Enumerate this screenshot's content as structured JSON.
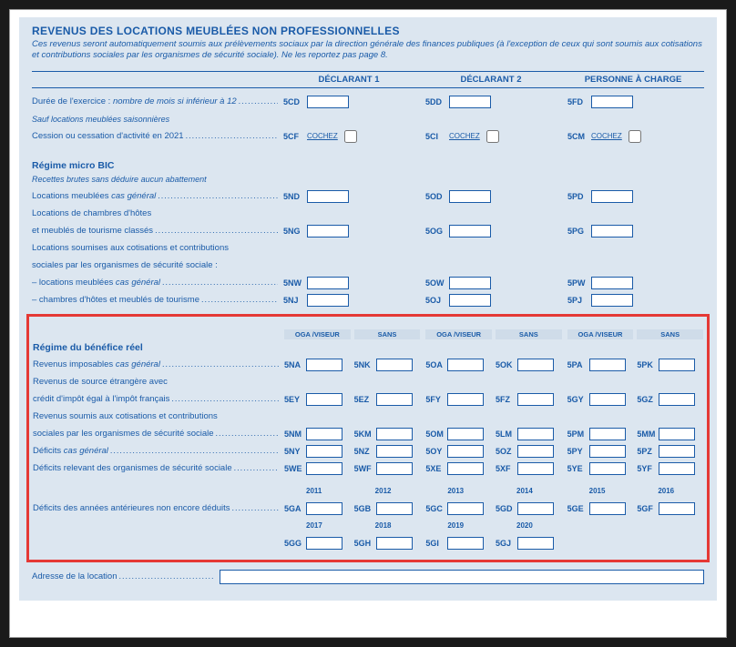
{
  "title": "REVENUS DES LOCATIONS MEUBLÉES NON PROFESSIONNELLES",
  "subtitle": "Ces revenus seront automatiquement soumis aux prélèvements sociaux par la direction générale des finances publiques (à l'exception de ceux qui sont soumis aux cotisations et contributions sociales par les organismes de sécurité sociale). Ne les reportez pas page 8.",
  "colHeaders": {
    "d1": "DÉCLARANT 1",
    "d2": "DÉCLARANT 2",
    "d3": "PERSONNE À CHARGE"
  },
  "rows": {
    "duree": {
      "label": "Durée de l'exercice :",
      "tail": "nombre de mois si inférieur à 12",
      "c": [
        "5CD",
        "5DD",
        "5FD"
      ]
    },
    "dureeSub": "Sauf locations meublées saisonnières",
    "cession": {
      "label": "Cession ou cessation d'activité en 2021",
      "c": [
        "5CF",
        "5CI",
        "5CM"
      ],
      "cochez": "COCHEZ"
    }
  },
  "micro": {
    "head": "Régime micro BIC",
    "sub": "Recettes brutes sans déduire aucun abattement",
    "r1": {
      "label": "Locations meublées",
      "tail": "cas général",
      "c": [
        "5ND",
        "5OD",
        "5PD"
      ]
    },
    "r2a": "Locations de chambres d'hôtes",
    "r2": {
      "label": "et meublés de tourisme classés",
      "c": [
        "5NG",
        "5OG",
        "5PG"
      ]
    },
    "r3a": "Locations soumises aux cotisations et contributions",
    "r3b": "sociales par les organismes de sécurité sociale :",
    "r4": {
      "label": "– locations meublées",
      "tail": "cas général",
      "c": [
        "5NW",
        "5OW",
        "5PW"
      ]
    },
    "r5": {
      "label": "– chambres d'hôtes et meublés de tourisme",
      "c": [
        "5NJ",
        "5OJ",
        "5PJ"
      ]
    }
  },
  "reel": {
    "head": "Régime du bénéfice réel",
    "sh": {
      "a": "OGA /VISEUR",
      "b": "SANS"
    },
    "r1": {
      "label": "Revenus imposables",
      "tail": "cas général",
      "c": [
        "5NA",
        "5NK",
        "5OA",
        "5OK",
        "5PA",
        "5PK"
      ]
    },
    "r2a": "Revenus de source étrangère avec",
    "r2": {
      "label": "crédit d'impôt égal à l'impôt français",
      "c": [
        "5EY",
        "5EZ",
        "5FY",
        "5FZ",
        "5GY",
        "5GZ"
      ]
    },
    "r3a": "Revenus soumis aux cotisations et contributions",
    "r3": {
      "label": "sociales par les organismes de sécurité sociale",
      "c": [
        "5NM",
        "5KM",
        "5OM",
        "5LM",
        "5PM",
        "5MM"
      ]
    },
    "r4": {
      "label": "Déficits",
      "tail": "cas général",
      "c": [
        "5NY",
        "5NZ",
        "5OY",
        "5OZ",
        "5PY",
        "5PZ"
      ]
    },
    "r5": {
      "label": "Déficits relevant des organismes de sécurité sociale",
      "c": [
        "5WE",
        "5WF",
        "5XE",
        "5XF",
        "5YE",
        "5YF"
      ]
    },
    "years1": [
      "2011",
      "2012",
      "2013",
      "2014",
      "2015",
      "2016"
    ],
    "r6": {
      "label": "Déficits des années antérieures non encore déduits",
      "c": [
        "5GA",
        "5GB",
        "5GC",
        "5GD",
        "5GE",
        "5GF"
      ]
    },
    "years2": [
      "2017",
      "2018",
      "2019",
      "2020",
      "",
      ""
    ],
    "r7": {
      "c": [
        "5GG",
        "5GH",
        "5GI",
        "5GJ"
      ]
    }
  },
  "address": "Adresse de la location",
  "colors": {
    "accent": "#1a5ba8",
    "panel": "#dce6f0",
    "highlight": "#e53935"
  }
}
